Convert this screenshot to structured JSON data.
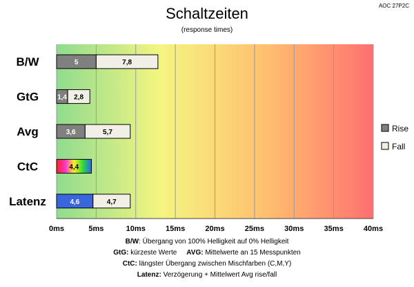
{
  "header": {
    "corner_label": "AOC 27P2C"
  },
  "chart_data": {
    "type": "bar",
    "orientation": "horizontal",
    "stacked": true,
    "title": "Schaltzeiten",
    "subtitle": "(response times)",
    "xlim": [
      0,
      40
    ],
    "x_ticks": [
      "0ms",
      "5ms",
      "10ms",
      "15ms",
      "20ms",
      "25ms",
      "30ms",
      "35ms",
      "40ms"
    ],
    "grid": true,
    "legend_position": "right",
    "categories": [
      "B/W",
      "GtG",
      "Avg",
      "CtC",
      "Latenz"
    ],
    "series": [
      {
        "name": "Rise",
        "values": [
          5,
          1.4,
          3.6,
          4.4,
          4.6
        ],
        "labels": [
          "5",
          "1,4",
          "3,6",
          "4,4",
          "4,6"
        ],
        "color": "#808080"
      },
      {
        "name": "Fall",
        "values": [
          7.8,
          2.8,
          5.7,
          null,
          4.7
        ],
        "labels": [
          "7,8",
          "2,8",
          "5,7",
          "",
          "4,7"
        ],
        "color": "#f2f0e6"
      }
    ],
    "special_colors": {
      "CtC": "rainbow",
      "Latenz": "#3a66dd"
    },
    "background_gradient": [
      "#8fdc8f",
      "#f5f580",
      "#ffc070",
      "#ff7070"
    ]
  },
  "notes": [
    {
      "bold": "B/W",
      "text": ":  Übergang von 100% Helligkeit auf 0% Helligkeit"
    },
    {
      "bold": "GtG:",
      "text": " kürzeste  Werte",
      "bold2": "AVG:",
      "text2": " Mittelwerte  an 15 Messpunkten"
    },
    {
      "bold": "CtC:",
      "text": " längster Übergang  zwischen Mischfarben  (C,M,Y)"
    },
    {
      "bold": "Latenz:",
      "text": " Verzögerung  + Mittelwert  Avg rise/fall"
    }
  ]
}
